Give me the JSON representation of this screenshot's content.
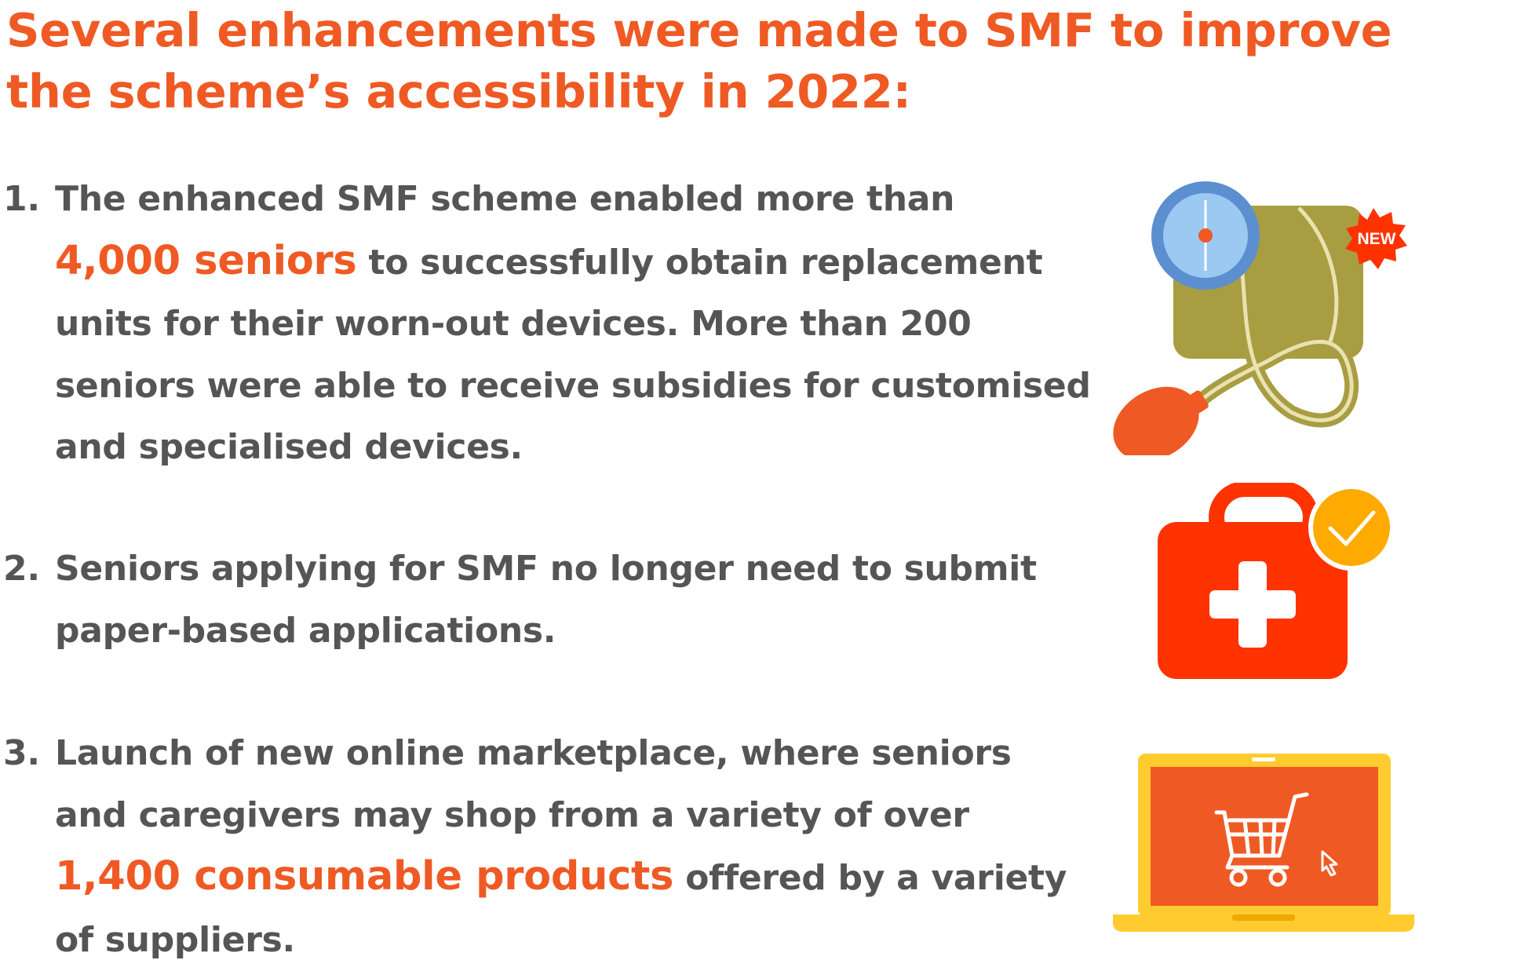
{
  "heading": {
    "line1": "Several enhancements were made to SMF to improve",
    "line2": "the scheme’s accessibility in 2022:"
  },
  "items": [
    {
      "number": "1.",
      "line1": "The enhanced SMF scheme enabled more than",
      "line2_highlight": "4,000 seniors",
      "line2_rest": " to successfully obtain replacement",
      "line3": "units for their worn-out devices. More than 200",
      "line4": "seniors were able to receive subsidies for customised",
      "line5": "and specialised devices."
    },
    {
      "number": "2.",
      "line1": "Seniors applying for SMF no longer need to submit",
      "line2": "paper-based applications."
    },
    {
      "number": "3.",
      "line1": "Launch of new online marketplace, where seniors",
      "line2": "and caregivers may shop from a variety of over",
      "line3_highlight": "1,400 consumable products",
      "line3_rest": " offered by a variety",
      "line4": "of suppliers."
    }
  ],
  "icons": {
    "bp_monitor": "blood-pressure-monitor-icon",
    "new_badge_label": "NEW",
    "first_aid": "first-aid-kit-icon",
    "laptop_cart": "laptop-shopping-cart-icon"
  },
  "colors": {
    "accent": "#ef5a24",
    "text": "#555555",
    "olive": "#a99d42",
    "blue": "#5b8fd0",
    "light_blue": "#9cc9f2",
    "red_kit": "#ff3300",
    "check_yellow": "#ffaa00",
    "laptop_yellow": "#ffcb2f"
  }
}
